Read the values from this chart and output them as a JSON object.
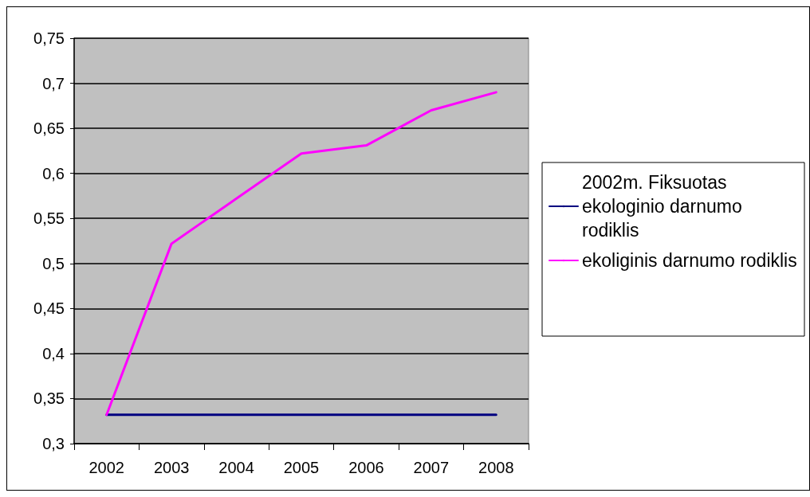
{
  "chart_data": {
    "type": "line",
    "categories": [
      "2002",
      "2003",
      "2004",
      "2005",
      "2006",
      "2007",
      "2008"
    ],
    "series": [
      {
        "name": "2002m. Fiksuotas ekologinio darnumo rodiklis",
        "color": "#000080",
        "values": [
          0.332,
          0.332,
          0.332,
          0.332,
          0.332,
          0.332,
          0.332
        ]
      },
      {
        "name": "ekoliginis darnumo rodiklis",
        "color": "#ff00ff",
        "values": [
          0.332,
          0.522,
          0.572,
          0.622,
          0.631,
          0.67,
          0.69
        ]
      }
    ],
    "ylim": [
      0.3,
      0.75
    ],
    "yticks": [
      {
        "value": 0.3,
        "label": "0,3"
      },
      {
        "value": 0.35,
        "label": "0,35"
      },
      {
        "value": 0.4,
        "label": "0,4"
      },
      {
        "value": 0.45,
        "label": "0,45"
      },
      {
        "value": 0.5,
        "label": "0,5"
      },
      {
        "value": 0.55,
        "label": "0,55"
      },
      {
        "value": 0.6,
        "label": "0,6"
      },
      {
        "value": 0.65,
        "label": "0,65"
      },
      {
        "value": 0.7,
        "label": "0,7"
      },
      {
        "value": 0.75,
        "label": "0,75"
      }
    ],
    "grid": "y",
    "legend": "right",
    "marker": "none"
  }
}
